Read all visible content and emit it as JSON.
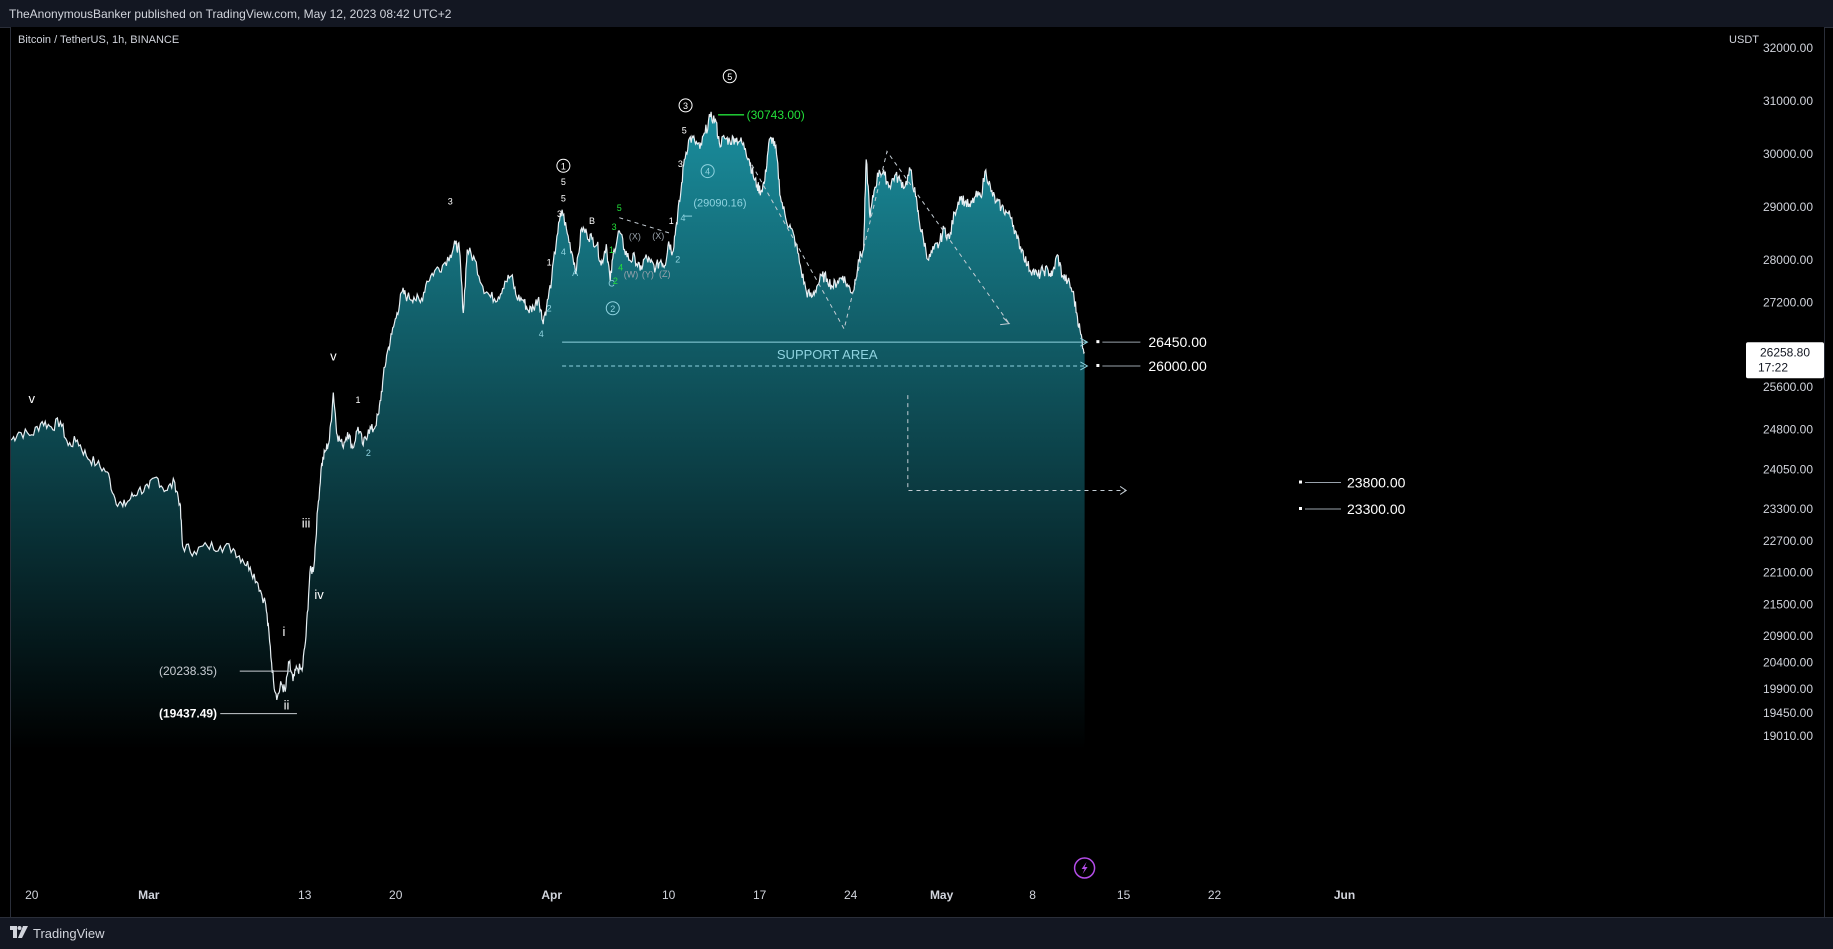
{
  "header": {
    "published": "TheAnonymousBanker published on TradingView.com, May 12, 2023 08:42 UTC+2"
  },
  "footer": {
    "brand": "TradingView",
    "logo_icon": "tradingview-logo-icon"
  },
  "colors": {
    "background": "#000000",
    "line": "#e6eef2",
    "area_top": "#1a8e9e",
    "area_bottom": "#000000",
    "annotation": "#8fd3e0",
    "green": "#22e03a",
    "text": "#d1d4dc"
  },
  "chart_data": {
    "type": "area",
    "symbol_label": "Bitcoin / TetherUS, 1h, BINANCE",
    "currency_label": "USDT",
    "ylim": [
      18750,
      32400
    ],
    "y_ticks": [
      "32000.00",
      "31000.00",
      "30000.00",
      "29000.00",
      "28000.00",
      "27200.00",
      "26400.00",
      "25600.00",
      "24800.00",
      "24050.00",
      "23300.00",
      "22700.00",
      "22100.00",
      "21500.00",
      "20900.00",
      "20400.00",
      "19900.00",
      "19450.00",
      "19010.00"
    ],
    "x_ticks": [
      {
        "label": "20",
        "day": 0
      },
      {
        "label": "Mar",
        "day": 9
      },
      {
        "label": "13",
        "day": 21
      },
      {
        "label": "20",
        "day": 28
      },
      {
        "label": "Apr",
        "day": 40
      },
      {
        "label": "10",
        "day": 49
      },
      {
        "label": "17",
        "day": 56
      },
      {
        "label": "24",
        "day": 63
      },
      {
        "label": "May",
        "day": 70
      },
      {
        "label": "8",
        "day": 77
      },
      {
        "label": "15",
        "day": 84
      },
      {
        "label": "22",
        "day": 91
      },
      {
        "label": "Jun",
        "day": 101
      }
    ],
    "x_range_days": [
      -1.6,
      111.5
    ],
    "price_path": [
      [
        -1.6,
        24600
      ],
      [
        -1,
        24750
      ],
      [
        0,
        24700
      ],
      [
        0.8,
        24950
      ],
      [
        1.5,
        24850
      ],
      [
        2.2,
        24950
      ],
      [
        2.8,
        24500
      ],
      [
        3.5,
        24600
      ],
      [
        4.2,
        24300
      ],
      [
        5,
        24150
      ],
      [
        5.8,
        24000
      ],
      [
        6.4,
        23500
      ],
      [
        7,
        23350
      ],
      [
        7.6,
        23500
      ],
      [
        8.2,
        23650
      ],
      [
        9,
        23700
      ],
      [
        9.6,
        23900
      ],
      [
        10.3,
        23650
      ],
      [
        11,
        23800
      ],
      [
        11.4,
        23400
      ],
      [
        11.6,
        22600
      ],
      [
        12.5,
        22500
      ],
      [
        13.5,
        22600
      ],
      [
        14.5,
        22600
      ],
      [
        15.5,
        22550
      ],
      [
        16.2,
        22350
      ],
      [
        16.8,
        22200
      ],
      [
        17.4,
        21900
      ],
      [
        18,
        21500
      ],
      [
        18.3,
        20800
      ],
      [
        18.6,
        20050
      ],
      [
        18.9,
        19750
      ],
      [
        19.2,
        20000
      ],
      [
        19.5,
        19850
      ],
      [
        19.8,
        20400
      ],
      [
        20.1,
        20050
      ],
      [
        20.4,
        20300
      ],
      [
        20.8,
        20250
      ],
      [
        21.1,
        20900
      ],
      [
        21.4,
        22100
      ],
      [
        21.7,
        22200
      ],
      [
        22,
        23300
      ],
      [
        22.3,
        24150
      ],
      [
        22.6,
        24400
      ],
      [
        22.9,
        24600
      ],
      [
        23.2,
        25500
      ],
      [
        23.5,
        24700
      ],
      [
        23.9,
        24500
      ],
      [
        24.3,
        24750
      ],
      [
        24.7,
        24450
      ],
      [
        25.1,
        24850
      ],
      [
        25.5,
        24500
      ],
      [
        25.9,
        24800
      ],
      [
        26.3,
        24800
      ],
      [
        26.7,
        25100
      ],
      [
        27,
        25700
      ],
      [
        27.3,
        26200
      ],
      [
        27.7,
        26600
      ],
      [
        28.1,
        27000
      ],
      [
        28.5,
        27400
      ],
      [
        28.9,
        27300
      ],
      [
        29.4,
        27300
      ],
      [
        29.9,
        27200
      ],
      [
        30.4,
        27600
      ],
      [
        31,
        27800
      ],
      [
        31.6,
        27900
      ],
      [
        32.2,
        28100
      ],
      [
        32.6,
        28300
      ],
      [
        32.9,
        28200
      ],
      [
        33.2,
        27000
      ],
      [
        33.5,
        28200
      ],
      [
        34.1,
        28000
      ],
      [
        34.7,
        27500
      ],
      [
        35.3,
        27300
      ],
      [
        35.9,
        27300
      ],
      [
        36.4,
        27600
      ],
      [
        36.9,
        27700
      ],
      [
        37.3,
        27300
      ],
      [
        37.8,
        27250
      ],
      [
        38.2,
        27050
      ],
      [
        38.6,
        27100
      ],
      [
        39,
        27300
      ],
      [
        39.3,
        26850
      ],
      [
        39.6,
        27100
      ],
      [
        40,
        27650
      ],
      [
        40.4,
        28450
      ],
      [
        40.8,
        28950
      ],
      [
        41.2,
        28500
      ],
      [
        41.6,
        28100
      ],
      [
        41.9,
        27800
      ],
      [
        42.3,
        28600
      ],
      [
        42.7,
        28500
      ],
      [
        43.1,
        28400
      ],
      [
        43.5,
        28300
      ],
      [
        43.8,
        27900
      ],
      [
        44.2,
        28300
      ],
      [
        44.5,
        27600
      ],
      [
        44.8,
        28200
      ],
      [
        45.2,
        28550
      ],
      [
        45.6,
        28200
      ],
      [
        46,
        28000
      ],
      [
        46.4,
        28050
      ],
      [
        46.8,
        27800
      ],
      [
        47.2,
        28050
      ],
      [
        47.6,
        27950
      ],
      [
        48,
        27850
      ],
      [
        48.4,
        28000
      ],
      [
        48.7,
        27900
      ],
      [
        49,
        28350
      ],
      [
        49.3,
        28150
      ],
      [
        49.6,
        28700
      ],
      [
        49.9,
        29200
      ],
      [
        50.2,
        29900
      ],
      [
        50.6,
        30300
      ],
      [
        51,
        30250
      ],
      [
        51.4,
        30100
      ],
      [
        51.8,
        30400
      ],
      [
        52.2,
        30700
      ],
      [
        52.6,
        30650
      ],
      [
        52.9,
        30200
      ],
      [
        53.3,
        30300
      ],
      [
        53.7,
        30250
      ],
      [
        54.1,
        30300
      ],
      [
        54.5,
        30250
      ],
      [
        54.9,
        30100
      ],
      [
        55.2,
        29900
      ],
      [
        55.5,
        29600
      ],
      [
        55.8,
        29400
      ],
      [
        56.1,
        29300
      ],
      [
        56.4,
        29500
      ],
      [
        56.7,
        30200
      ],
      [
        57,
        30300
      ],
      [
        57.3,
        30000
      ],
      [
        57.6,
        29200
      ],
      [
        58,
        28800
      ],
      [
        58.4,
        28600
      ],
      [
        58.8,
        28300
      ],
      [
        59.2,
        27800
      ],
      [
        59.6,
        27400
      ],
      [
        60,
        27300
      ],
      [
        60.4,
        27500
      ],
      [
        60.8,
        27700
      ],
      [
        61.2,
        27650
      ],
      [
        61.6,
        27500
      ],
      [
        62,
        27600
      ],
      [
        62.4,
        27700
      ],
      [
        62.8,
        27500
      ],
      [
        63.2,
        27400
      ],
      [
        63.6,
        28000
      ],
      [
        64,
        28200
      ],
      [
        64.2,
        29900
      ],
      [
        64.5,
        28800
      ],
      [
        64.8,
        29300
      ],
      [
        65.2,
        29700
      ],
      [
        65.6,
        29600
      ],
      [
        66,
        29400
      ],
      [
        66.4,
        29600
      ],
      [
        66.8,
        29500
      ],
      [
        67.2,
        29400
      ],
      [
        67.6,
        29700
      ],
      [
        68,
        29200
      ],
      [
        68.3,
        28700
      ],
      [
        68.6,
        28400
      ],
      [
        69,
        28000
      ],
      [
        69.4,
        28200
      ],
      [
        69.8,
        28300
      ],
      [
        70.2,
        28600
      ],
      [
        70.6,
        28400
      ],
      [
        71,
        28900
      ],
      [
        71.4,
        29200
      ],
      [
        71.8,
        29100
      ],
      [
        72.2,
        29000
      ],
      [
        72.6,
        29200
      ],
      [
        73,
        29200
      ],
      [
        73.4,
        29700
      ],
      [
        73.8,
        29300
      ],
      [
        74.2,
        29100
      ],
      [
        74.6,
        29000
      ],
      [
        75,
        28900
      ],
      [
        75.4,
        28800
      ],
      [
        75.8,
        28400
      ],
      [
        76.2,
        28200
      ],
      [
        76.6,
        27900
      ],
      [
        77,
        27800
      ],
      [
        77.4,
        27700
      ],
      [
        77.8,
        27800
      ],
      [
        78.2,
        27800
      ],
      [
        78.5,
        27700
      ],
      [
        78.9,
        28100
      ],
      [
        79.3,
        27700
      ],
      [
        79.7,
        27600
      ],
      [
        80.1,
        27400
      ],
      [
        80.4,
        27000
      ],
      [
        80.7,
        26600
      ],
      [
        81,
        26258.8
      ]
    ],
    "horizontal_levels": [
      {
        "label": "26450.00",
        "price": 26450,
        "day_start": 40.8,
        "day_end": 81.6,
        "style": "solid"
      },
      {
        "label": "26000.00",
        "price": 26000,
        "day_start": 40.8,
        "day_end": 81.6,
        "style": "dashed"
      },
      {
        "label": "23800.00",
        "price": 23800,
        "style": "target"
      },
      {
        "label": "23300.00",
        "price": 23300,
        "style": "target"
      },
      {
        "label": "(20238.35)",
        "price": 20238.35,
        "style": "low"
      },
      {
        "label": "(19437.49)",
        "price": 19437.49,
        "style": "low"
      }
    ],
    "zone_label": "SUPPORT AREA",
    "current_price": "26258.80",
    "countdown": "17:22",
    "peak_label": "(30743.00)",
    "mid_label": "(29090.16)",
    "wave_labels": [
      {
        "text": "v",
        "day": 0,
        "price": 25300,
        "tone": "white"
      },
      {
        "text": "v",
        "day": 23.2,
        "price": 26100,
        "tone": "white"
      },
      {
        "text": "i",
        "day": 19.4,
        "price": 20900,
        "tone": "white"
      },
      {
        "text": "ii",
        "day": 19.6,
        "price": 19510,
        "tone": "white"
      },
      {
        "text": "iii",
        "day": 21.1,
        "price": 22950,
        "tone": "white"
      },
      {
        "text": "iv",
        "day": 22.1,
        "price": 21600,
        "tone": "white"
      },
      {
        "text": "1",
        "day": 25.1,
        "price": 25300,
        "tone": "white"
      },
      {
        "text": "2",
        "day": 25.9,
        "price": 24300,
        "tone": "cyan"
      },
      {
        "text": "3",
        "day": 32.2,
        "price": 29050,
        "tone": "white"
      },
      {
        "text": "4",
        "day": 39.2,
        "price": 26550,
        "tone": "cyan"
      },
      {
        "text": "2",
        "day": 39.8,
        "price": 27030,
        "tone": "cyan"
      },
      {
        "text": "1",
        "day": 39.8,
        "price": 27900,
        "tone": "white"
      },
      {
        "text": "3",
        "day": 40.6,
        "price": 28810,
        "tone": "white"
      },
      {
        "text": "5",
        "day": 40.9,
        "price": 29110,
        "tone": "white"
      },
      {
        "text": "5",
        "day": 40.9,
        "price": 29420,
        "tone": "white"
      },
      {
        "text": "4",
        "day": 40.9,
        "price": 28100,
        "tone": "cyan"
      },
      {
        "text": "A",
        "day": 41.8,
        "price": 27700,
        "tone": "cyan"
      },
      {
        "text": "B",
        "day": 43.1,
        "price": 28680,
        "tone": "white"
      },
      {
        "text": "C",
        "day": 44.6,
        "price": 27500,
        "tone": "cyan"
      },
      {
        "text": "2",
        "day": 44.9,
        "price": 27550,
        "tone": "green"
      },
      {
        "text": "4",
        "day": 45.3,
        "price": 27800,
        "tone": "green"
      },
      {
        "text": "1",
        "day": 44.6,
        "price": 28130,
        "tone": "green"
      },
      {
        "text": "3",
        "day": 44.8,
        "price": 28570,
        "tone": "green"
      },
      {
        "text": "5",
        "day": 45.2,
        "price": 28930,
        "tone": "green"
      },
      {
        "text": "(X)",
        "day": 46.4,
        "price": 28390,
        "tone": "grey"
      },
      {
        "text": "(W)",
        "day": 46.1,
        "price": 27670,
        "tone": "grey"
      },
      {
        "text": "(Y)",
        "day": 47.4,
        "price": 27670,
        "tone": "grey"
      },
      {
        "text": "(X)",
        "day": 48.2,
        "price": 28400,
        "tone": "grey"
      },
      {
        "text": "(Z)",
        "day": 48.7,
        "price": 27680,
        "tone": "grey"
      },
      {
        "text": "1",
        "day": 49.2,
        "price": 28680,
        "tone": "white"
      },
      {
        "text": "2",
        "day": 49.7,
        "price": 27950,
        "tone": "cyan"
      },
      {
        "text": "3",
        "day": 49.9,
        "price": 29760,
        "tone": "white"
      },
      {
        "text": "4",
        "day": 50.1,
        "price": 28740,
        "tone": "cyan"
      },
      {
        "text": "5",
        "day": 50.2,
        "price": 30390,
        "tone": "white"
      }
    ],
    "circled_labels": [
      {
        "text": "①",
        "day": 40.9,
        "price": 29780,
        "tone": "white"
      },
      {
        "text": "②",
        "day": 44.7,
        "price": 27090,
        "tone": "cyan"
      },
      {
        "text": "③",
        "day": 50.3,
        "price": 30920,
        "tone": "white"
      },
      {
        "text": "④",
        "day": 52,
        "price": 29680,
        "tone": "cyan"
      },
      {
        "text": "⑤",
        "day": 53.7,
        "price": 31470,
        "tone": "white"
      }
    ],
    "grid": false,
    "legend": "none"
  }
}
